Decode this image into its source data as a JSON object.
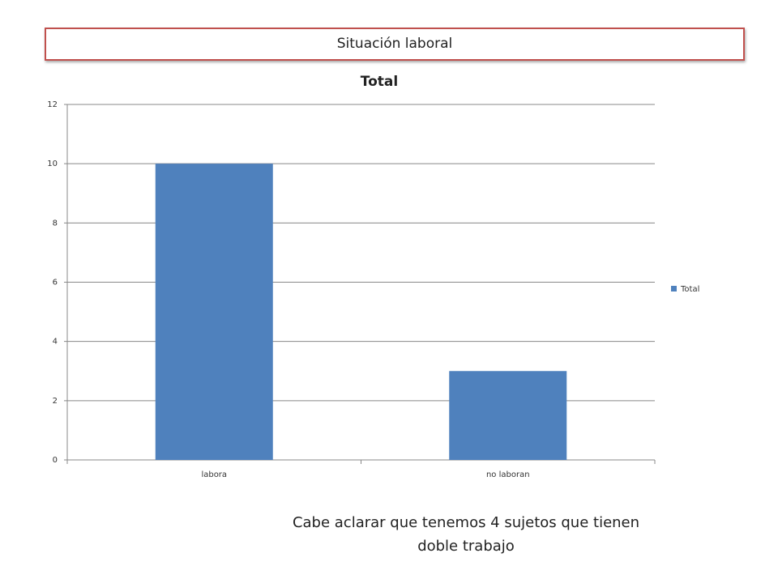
{
  "header": {
    "title": "Situación laboral"
  },
  "chart_data": {
    "type": "bar",
    "title": "Total",
    "categories": [
      "labora",
      "no laboran"
    ],
    "series": [
      {
        "name": "Total",
        "color": "#4f81bd",
        "values": [
          10,
          3
        ]
      }
    ],
    "ylim": [
      0,
      12
    ],
    "yticks": [
      0,
      2,
      4,
      6,
      8,
      10,
      12
    ],
    "grid": true,
    "legend": "right"
  },
  "note": "Cabe aclarar que tenemos 4 sujetos que tienen doble trabajo"
}
